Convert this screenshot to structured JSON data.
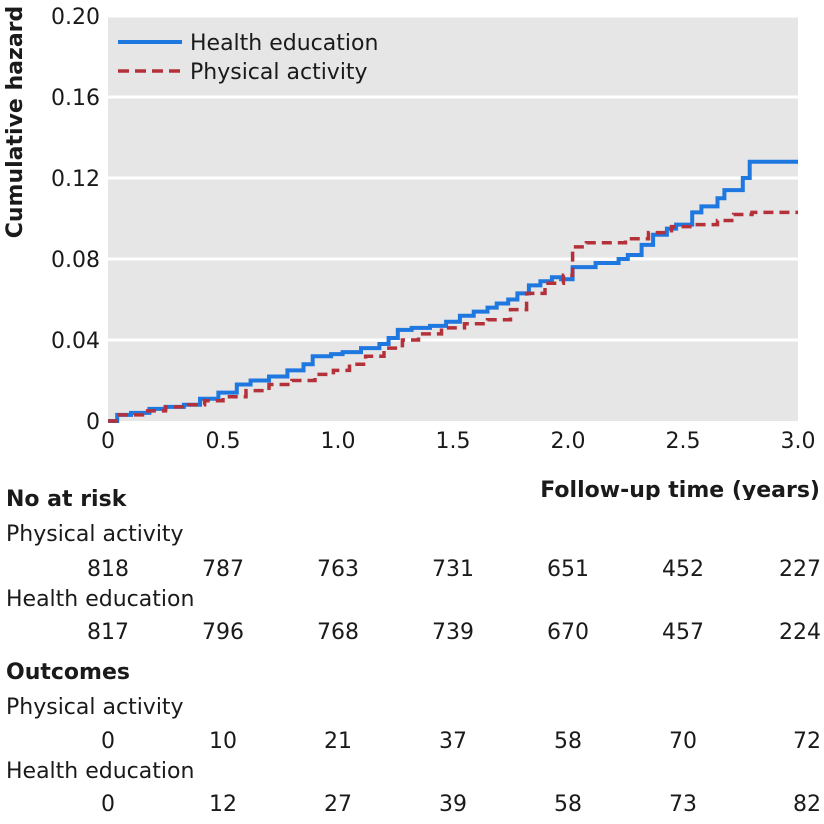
{
  "chart_data": {
    "type": "line",
    "title": "",
    "xlabel": "Follow-up time (years)",
    "ylabel": "Cumulative hazard",
    "xlim": [
      0,
      3.0
    ],
    "ylim": [
      0,
      0.2
    ],
    "x_ticks": [
      "0",
      "0.5",
      "1.0",
      "1.5",
      "2.0",
      "2.5",
      "3.0"
    ],
    "y_ticks": [
      "0",
      "0.04",
      "0.08",
      "0.12",
      "0.16",
      "0.20"
    ],
    "grid": true,
    "legend_position": "top-left",
    "series": [
      {
        "name": "Health education",
        "color": "#1f77e0",
        "style": "solid",
        "x": [
          0,
          0.04,
          0.1,
          0.18,
          0.25,
          0.33,
          0.4,
          0.48,
          0.56,
          0.62,
          0.7,
          0.78,
          0.85,
          0.89,
          0.97,
          1.02,
          1.1,
          1.18,
          1.22,
          1.26,
          1.32,
          1.4,
          1.47,
          1.53,
          1.59,
          1.65,
          1.69,
          1.74,
          1.78,
          1.83,
          1.88,
          1.93,
          1.97,
          2.02,
          2.12,
          2.22,
          2.26,
          2.32,
          2.37,
          2.43,
          2.47,
          2.54,
          2.58,
          2.65,
          2.68,
          2.76,
          2.79,
          2.85,
          3.0
        ],
        "y": [
          0,
          0.003,
          0.004,
          0.006,
          0.007,
          0.008,
          0.011,
          0.014,
          0.018,
          0.02,
          0.022,
          0.025,
          0.028,
          0.032,
          0.033,
          0.034,
          0.036,
          0.038,
          0.041,
          0.045,
          0.046,
          0.047,
          0.049,
          0.052,
          0.054,
          0.056,
          0.058,
          0.06,
          0.063,
          0.067,
          0.069,
          0.071,
          0.07,
          0.076,
          0.078,
          0.08,
          0.082,
          0.087,
          0.092,
          0.095,
          0.097,
          0.103,
          0.106,
          0.11,
          0.114,
          0.12,
          0.128,
          0.128,
          0.128
        ]
      },
      {
        "name": "Physical activity",
        "color": "#b5313a",
        "style": "dashed",
        "x": [
          0,
          0.05,
          0.15,
          0.25,
          0.35,
          0.42,
          0.5,
          0.6,
          0.7,
          0.8,
          0.9,
          0.98,
          1.05,
          1.12,
          1.2,
          1.28,
          1.35,
          1.45,
          1.55,
          1.65,
          1.75,
          1.82,
          1.9,
          1.98,
          2.02,
          2.08,
          2.15,
          2.25,
          2.35,
          2.45,
          2.55,
          2.65,
          2.72,
          2.8,
          3.0
        ],
        "y": [
          0,
          0.003,
          0.005,
          0.007,
          0.008,
          0.01,
          0.012,
          0.015,
          0.018,
          0.02,
          0.023,
          0.025,
          0.028,
          0.032,
          0.036,
          0.04,
          0.043,
          0.046,
          0.048,
          0.05,
          0.055,
          0.063,
          0.068,
          0.072,
          0.086,
          0.088,
          0.088,
          0.09,
          0.093,
          0.096,
          0.097,
          0.099,
          0.102,
          0.103,
          0.103
        ]
      }
    ]
  },
  "risk_table": {
    "heading": "No at risk",
    "rows": [
      {
        "label": "Physical activity",
        "values": [
          "818",
          "787",
          "763",
          "731",
          "651",
          "452",
          "227"
        ]
      },
      {
        "label": "Health education",
        "values": [
          "817",
          "796",
          "768",
          "739",
          "670",
          "457",
          "224"
        ]
      }
    ]
  },
  "outcomes_table": {
    "heading": "Outcomes",
    "rows": [
      {
        "label": "Physical activity",
        "values": [
          "0",
          "10",
          "21",
          "37",
          "58",
          "70",
          "72"
        ]
      },
      {
        "label": "Health education",
        "values": [
          "0",
          "12",
          "27",
          "39",
          "58",
          "73",
          "82"
        ]
      }
    ]
  }
}
